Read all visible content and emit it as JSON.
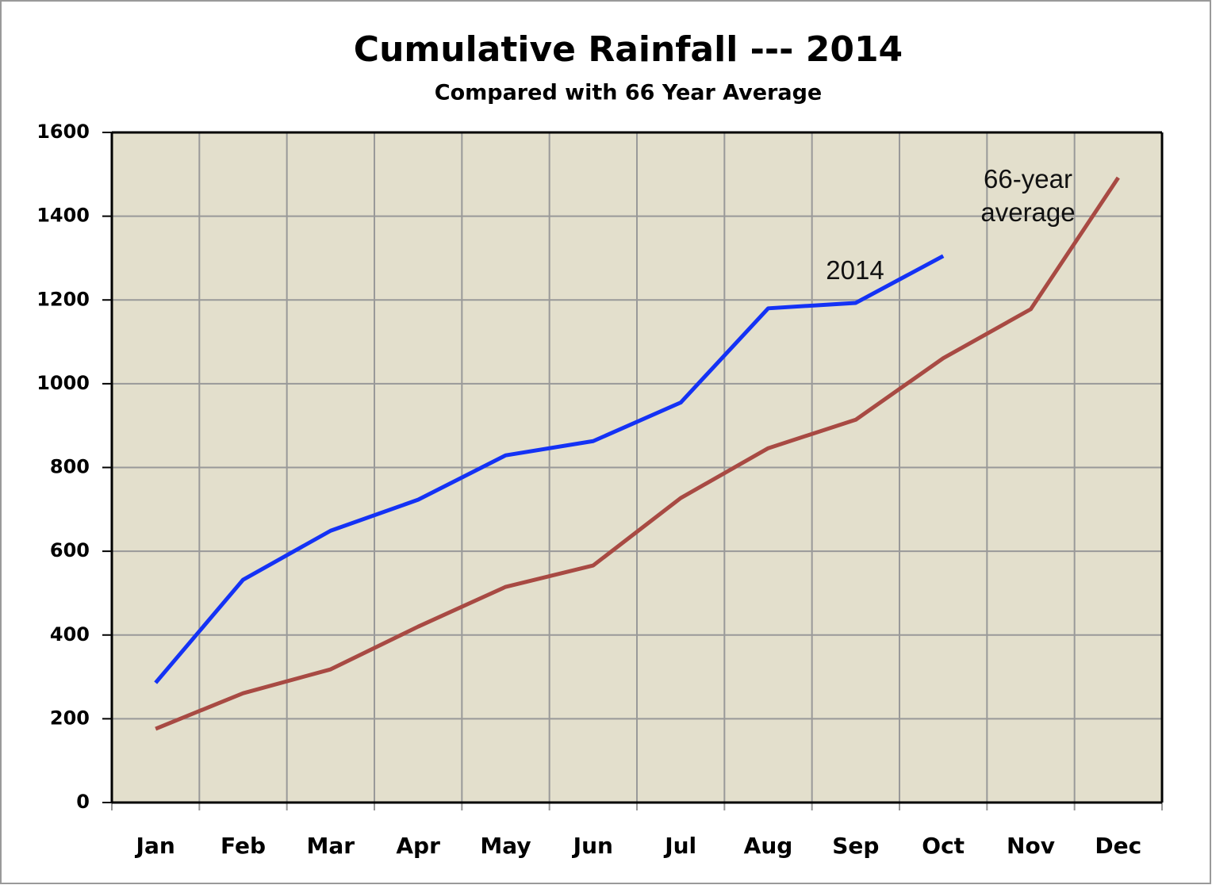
{
  "chart_data": {
    "type": "line",
    "title": "Cumulative Rainfall --- 2014",
    "subtitle": "Compared with 66 Year Average",
    "categories": [
      "Jan",
      "Feb",
      "Mar",
      "Apr",
      "May",
      "Jun",
      "Jul",
      "Aug",
      "Sep",
      "Oct",
      "Nov",
      "Dec"
    ],
    "series": [
      {
        "name": "2014",
        "color": "#1432f5",
        "values": [
          286,
          532,
          649,
          723,
          829,
          863,
          955,
          1180,
          1193,
          1305,
          null,
          null
        ]
      },
      {
        "name": "66-year average",
        "color": "#a84a43",
        "values": [
          176,
          261,
          318,
          420,
          515,
          566,
          727,
          846,
          914,
          1061,
          1178,
          1492
        ]
      }
    ],
    "ylim": [
      0,
      1600
    ],
    "yticks": [
      0,
      200,
      400,
      600,
      800,
      1000,
      1200,
      1400,
      1600
    ],
    "grid": true,
    "background": "#e3dfcc"
  }
}
